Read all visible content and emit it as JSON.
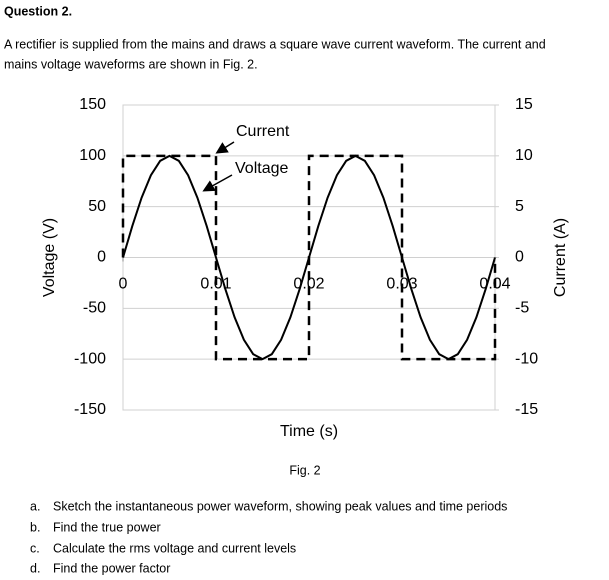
{
  "header": {
    "title": "Question 2."
  },
  "intro": {
    "lines": [
      "A rectifier is supplied from the mains and draws a square wave current waveform.  The current and",
      "mains voltage waveforms are shown in Fig. 2."
    ]
  },
  "chart_data": {
    "type": "line",
    "xlabel": "Time (s)",
    "ylabel": "Voltage (V)",
    "y2label": "Current (A)",
    "xlim": [
      0,
      0.04
    ],
    "xticks": [
      0,
      0.01,
      0.02,
      0.03,
      0.04
    ],
    "ylim": [
      -150,
      150
    ],
    "yticks": [
      -150,
      -100,
      -50,
      0,
      50,
      100,
      150
    ],
    "y2lim": [
      -15,
      15
    ],
    "y2ticks": [
      -15,
      -10,
      -5,
      0,
      5,
      10,
      15
    ],
    "grid": true,
    "annotations": [
      "Current",
      "Voltage"
    ],
    "series": [
      {
        "name": "Voltage",
        "color": "#000000",
        "style": "solid",
        "x": [
          0,
          0.001,
          0.002,
          0.003,
          0.004,
          0.005,
          0.006,
          0.007,
          0.008,
          0.009,
          0.01,
          0.011,
          0.012,
          0.013,
          0.014,
          0.015,
          0.016,
          0.017,
          0.018,
          0.019,
          0.02,
          0.021,
          0.022,
          0.023,
          0.024,
          0.025,
          0.026,
          0.027,
          0.028,
          0.029,
          0.03,
          0.031,
          0.032,
          0.033,
          0.034,
          0.035,
          0.036,
          0.037,
          0.038,
          0.039,
          0.04
        ],
        "values": [
          0,
          30.9,
          58.8,
          80.9,
          95.1,
          100,
          95.1,
          80.9,
          58.8,
          30.9,
          0,
          -30.9,
          -58.8,
          -80.9,
          -95.1,
          -100,
          -95.1,
          -80.9,
          -58.8,
          -30.9,
          0,
          30.9,
          58.8,
          80.9,
          95.1,
          100,
          95.1,
          80.9,
          58.8,
          30.9,
          0,
          -30.9,
          -58.8,
          -80.9,
          -95.1,
          -100,
          -95.1,
          -80.9,
          -58.8,
          -30.9,
          0
        ]
      },
      {
        "name": "Current",
        "color": "#000000",
        "style": "dashed",
        "axis": "y2",
        "x": [
          0,
          0,
          0.01,
          0.01,
          0.02,
          0.02,
          0.03,
          0.03,
          0.04,
          0.04
        ],
        "values": [
          0,
          10,
          10,
          -10,
          -10,
          10,
          10,
          -10,
          -10,
          0
        ]
      }
    ]
  },
  "figure": {
    "caption": "Fig. 2"
  },
  "questions": [
    {
      "letter": "a.",
      "text": "Sketch the instantaneous power waveform, showing peak values and time periods"
    },
    {
      "letter": "b.",
      "text": "Find the true power"
    },
    {
      "letter": "c.",
      "text": "Calculate the rms voltage and current levels"
    },
    {
      "letter": "d.",
      "text": "Find the power factor"
    }
  ]
}
